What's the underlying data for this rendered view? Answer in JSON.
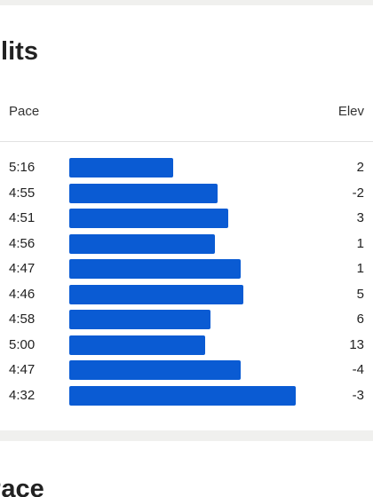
{
  "splits": {
    "title": "Splits",
    "columns": {
      "pace": "Pace",
      "elev": "Elev"
    },
    "rows": [
      {
        "pace": "5:16",
        "elev": 2
      },
      {
        "pace": "4:55",
        "elev": -2
      },
      {
        "pace": "4:51",
        "elev": 3
      },
      {
        "pace": "4:56",
        "elev": 1
      },
      {
        "pace": "4:47",
        "elev": 1
      },
      {
        "pace": "4:46",
        "elev": 5
      },
      {
        "pace": "4:58",
        "elev": 6
      },
      {
        "pace": "5:00",
        "elev": 13
      },
      {
        "pace": "4:47",
        "elev": -4
      },
      {
        "pace": "4:32",
        "elev": -3
      }
    ]
  },
  "next_section": {
    "title": "Pace"
  }
}
